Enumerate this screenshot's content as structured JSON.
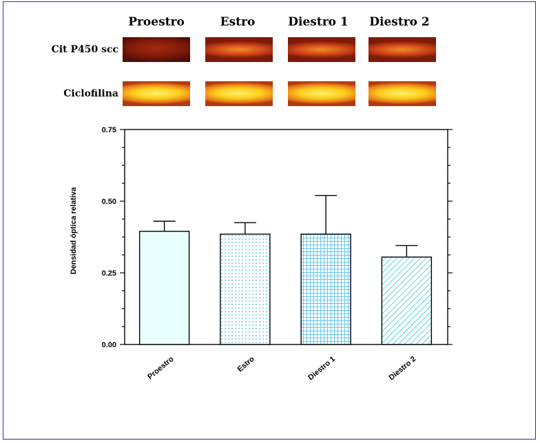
{
  "blot": {
    "headers": [
      "Proestro",
      "Estro",
      "Diestro 1",
      "Diestro 2"
    ],
    "row_labels": [
      "Cit P450 scc",
      "Ciclofilina"
    ]
  },
  "colors": {
    "border": "#1e2cbc",
    "bar_fill": "#e9ffff",
    "bar_pattern": "#66c6ec",
    "axis": "#000000"
  },
  "chart_data": {
    "type": "bar",
    "ylabel": "Densidad óptica relativa",
    "xlabel": "",
    "categories": [
      "Proestro",
      "Estro",
      "Diestro 1",
      "Diestro 2"
    ],
    "values": [
      0.395,
      0.385,
      0.385,
      0.305
    ],
    "errors": [
      0.035,
      0.04,
      0.135,
      0.04
    ],
    "patterns": [
      "solid",
      "dots",
      "grid",
      "diagonal"
    ],
    "ylim": [
      0,
      0.75
    ],
    "yticks": [
      "0.00",
      "0.25",
      "0.50",
      "0.75"
    ],
    "grid": false
  }
}
